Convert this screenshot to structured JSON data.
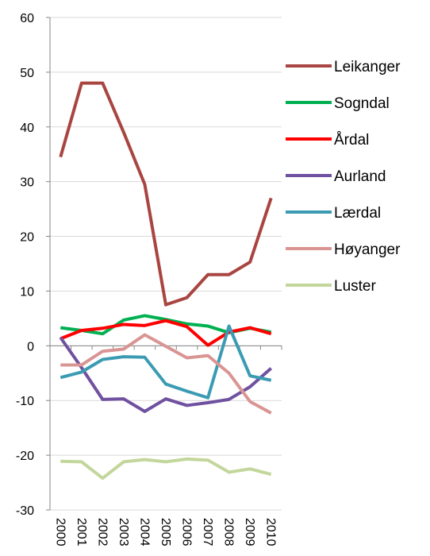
{
  "chart_data": {
    "type": "line",
    "categories": [
      "2000",
      "2001",
      "2002",
      "2003",
      "2004",
      "2005",
      "2006",
      "2007",
      "2008",
      "2009",
      "2010"
    ],
    "series": [
      {
        "name": "Leikanger",
        "color": "#a94541",
        "values": [
          34.5,
          48,
          48,
          39,
          29.5,
          7.5,
          8.8,
          13,
          13,
          15.3,
          27
        ]
      },
      {
        "name": "Sogndal",
        "color": "#00b050",
        "values": [
          3.3,
          2.8,
          2.2,
          4.7,
          5.5,
          4.8,
          4,
          3.6,
          2.4,
          3.2,
          2.5
        ]
      },
      {
        "name": "Årdal",
        "color": "#ff0000",
        "values": [
          1.3,
          2.8,
          3.2,
          3.9,
          3.7,
          4.6,
          3.5,
          0.1,
          2.5,
          3.3,
          2.2
        ]
      },
      {
        "name": "Aurland",
        "color": "#7051a0",
        "values": [
          1.5,
          -4,
          -9.8,
          -9.7,
          -12,
          -9.7,
          -10.9,
          -10.4,
          -9.8,
          -7.5,
          -4.1
        ]
      },
      {
        "name": "Lærdal",
        "color": "#3b9bb3",
        "values": [
          -5.8,
          -4.8,
          -2.5,
          -2,
          -2.1,
          -7,
          -8.3,
          -9.5,
          3.6,
          -5.5,
          -6.3
        ]
      },
      {
        "name": "Høyanger",
        "color": "#d99594",
        "values": [
          -3.5,
          -3.5,
          -1,
          -0.6,
          2,
          -0.1,
          -2.2,
          -1.8,
          -5,
          -10.2,
          -12.3
        ]
      },
      {
        "name": "Luster",
        "color": "#c3d69b",
        "values": [
          -21.1,
          -21.2,
          -24.2,
          -21.2,
          -20.8,
          -21.2,
          -20.7,
          -20.9,
          -23.1,
          -22.5,
          -23.5
        ]
      }
    ],
    "ylim": [
      -30,
      60
    ],
    "yticks": [
      -30,
      -20,
      -10,
      0,
      10,
      20,
      30,
      40,
      50,
      60
    ],
    "grid": true,
    "legend": "right"
  }
}
